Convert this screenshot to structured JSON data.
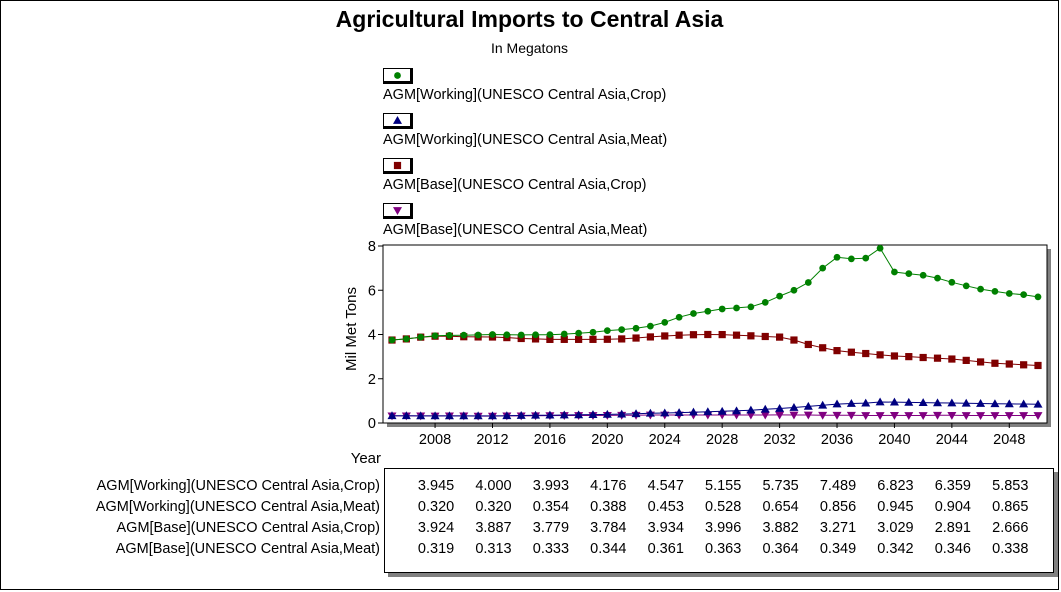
{
  "chart_data": {
    "type": "line",
    "title": "Agricultural Imports to Central Asia",
    "subtitle": "In Megatons",
    "ylabel": "Mil Met Tons",
    "xlabel": "Year",
    "ylim": [
      0,
      8
    ],
    "yticks": [
      "0",
      "2",
      "4",
      "6",
      "8"
    ],
    "xlim": [
      2005,
      2050
    ],
    "xticks": [
      "2008",
      "2012",
      "2016",
      "2020",
      "2024",
      "2028",
      "2032",
      "2036",
      "2040",
      "2044",
      "2048"
    ],
    "x": [
      2005,
      2006,
      2007,
      2008,
      2009,
      2010,
      2011,
      2012,
      2013,
      2014,
      2015,
      2016,
      2017,
      2018,
      2019,
      2020,
      2021,
      2022,
      2023,
      2024,
      2025,
      2026,
      2027,
      2028,
      2029,
      2030,
      2031,
      2032,
      2033,
      2034,
      2035,
      2036,
      2037,
      2038,
      2039,
      2040,
      2041,
      2042,
      2043,
      2044,
      2045,
      2046,
      2047,
      2048,
      2049,
      2050
    ],
    "series": [
      {
        "name": "AGM[Working](UNESCO Central Asia,Crop)",
        "color": "#008000",
        "marker": "circle",
        "values": [
          3.75,
          3.8,
          3.88,
          3.945,
          3.96,
          3.97,
          3.98,
          4.0,
          3.99,
          3.98,
          3.99,
          3.993,
          4.02,
          4.06,
          4.1,
          4.176,
          4.22,
          4.28,
          4.38,
          4.547,
          4.78,
          4.95,
          5.05,
          5.155,
          5.2,
          5.25,
          5.45,
          5.735,
          6.0,
          6.35,
          7.0,
          7.489,
          7.42,
          7.45,
          7.9,
          6.823,
          6.75,
          6.68,
          6.55,
          6.359,
          6.2,
          6.05,
          5.95,
          5.853,
          5.8,
          5.7
        ]
      },
      {
        "name": "AGM[Working](UNESCO Central Asia,Meat)",
        "color": "#000080",
        "marker": "triangle-up",
        "values": [
          0.33,
          0.33,
          0.32,
          0.32,
          0.32,
          0.32,
          0.32,
          0.32,
          0.33,
          0.34,
          0.35,
          0.354,
          0.36,
          0.37,
          0.38,
          0.388,
          0.4,
          0.42,
          0.44,
          0.453,
          0.47,
          0.49,
          0.51,
          0.528,
          0.55,
          0.58,
          0.62,
          0.654,
          0.7,
          0.75,
          0.8,
          0.856,
          0.88,
          0.9,
          0.95,
          0.945,
          0.93,
          0.92,
          0.91,
          0.904,
          0.89,
          0.88,
          0.87,
          0.865,
          0.86,
          0.85
        ]
      },
      {
        "name": "AGM[Base](UNESCO Central Asia,Crop)",
        "color": "#800000",
        "marker": "square",
        "values": [
          3.75,
          3.8,
          3.88,
          3.924,
          3.92,
          3.9,
          3.89,
          3.887,
          3.86,
          3.82,
          3.8,
          3.779,
          3.78,
          3.78,
          3.78,
          3.784,
          3.8,
          3.84,
          3.89,
          3.934,
          3.97,
          3.99,
          4.0,
          3.996,
          3.97,
          3.94,
          3.91,
          3.882,
          3.75,
          3.55,
          3.4,
          3.271,
          3.2,
          3.14,
          3.08,
          3.029,
          3.0,
          2.96,
          2.93,
          2.891,
          2.83,
          2.76,
          2.7,
          2.666,
          2.63,
          2.6
        ]
      },
      {
        "name": "AGM[Base](UNESCO Central Asia,Meat)",
        "color": "#800080",
        "marker": "triangle-down",
        "values": [
          0.32,
          0.32,
          0.32,
          0.319,
          0.32,
          0.32,
          0.31,
          0.313,
          0.32,
          0.32,
          0.33,
          0.333,
          0.34,
          0.34,
          0.34,
          0.344,
          0.35,
          0.35,
          0.36,
          0.361,
          0.36,
          0.36,
          0.36,
          0.363,
          0.36,
          0.36,
          0.36,
          0.364,
          0.36,
          0.36,
          0.35,
          0.349,
          0.35,
          0.34,
          0.34,
          0.342,
          0.34,
          0.34,
          0.35,
          0.346,
          0.34,
          0.34,
          0.34,
          0.338,
          0.34,
          0.34
        ]
      }
    ],
    "table": {
      "years": [
        "2008",
        "2012",
        "2016",
        "2020",
        "2024",
        "2028",
        "2032",
        "2036",
        "2040",
        "2044",
        "2048"
      ],
      "rows": [
        {
          "label": "AGM[Working](UNESCO Central Asia,Crop)",
          "values": [
            "3.945",
            "4.000",
            "3.993",
            "4.176",
            "4.547",
            "5.155",
            "5.735",
            "7.489",
            "6.823",
            "6.359",
            "5.853"
          ]
        },
        {
          "label": "AGM[Working](UNESCO Central Asia,Meat)",
          "values": [
            "0.320",
            "0.320",
            "0.354",
            "0.388",
            "0.453",
            "0.528",
            "0.654",
            "0.856",
            "0.945",
            "0.904",
            "0.865"
          ]
        },
        {
          "label": "AGM[Base](UNESCO Central Asia,Crop)",
          "values": [
            "3.924",
            "3.887",
            "3.779",
            "3.784",
            "3.934",
            "3.996",
            "3.882",
            "3.271",
            "3.029",
            "2.891",
            "2.666"
          ]
        },
        {
          "label": "AGM[Base](UNESCO Central Asia,Meat)",
          "values": [
            "0.319",
            "0.313",
            "0.333",
            "0.344",
            "0.361",
            "0.363",
            "0.364",
            "0.349",
            "0.342",
            "0.346",
            "0.338"
          ]
        }
      ]
    }
  }
}
